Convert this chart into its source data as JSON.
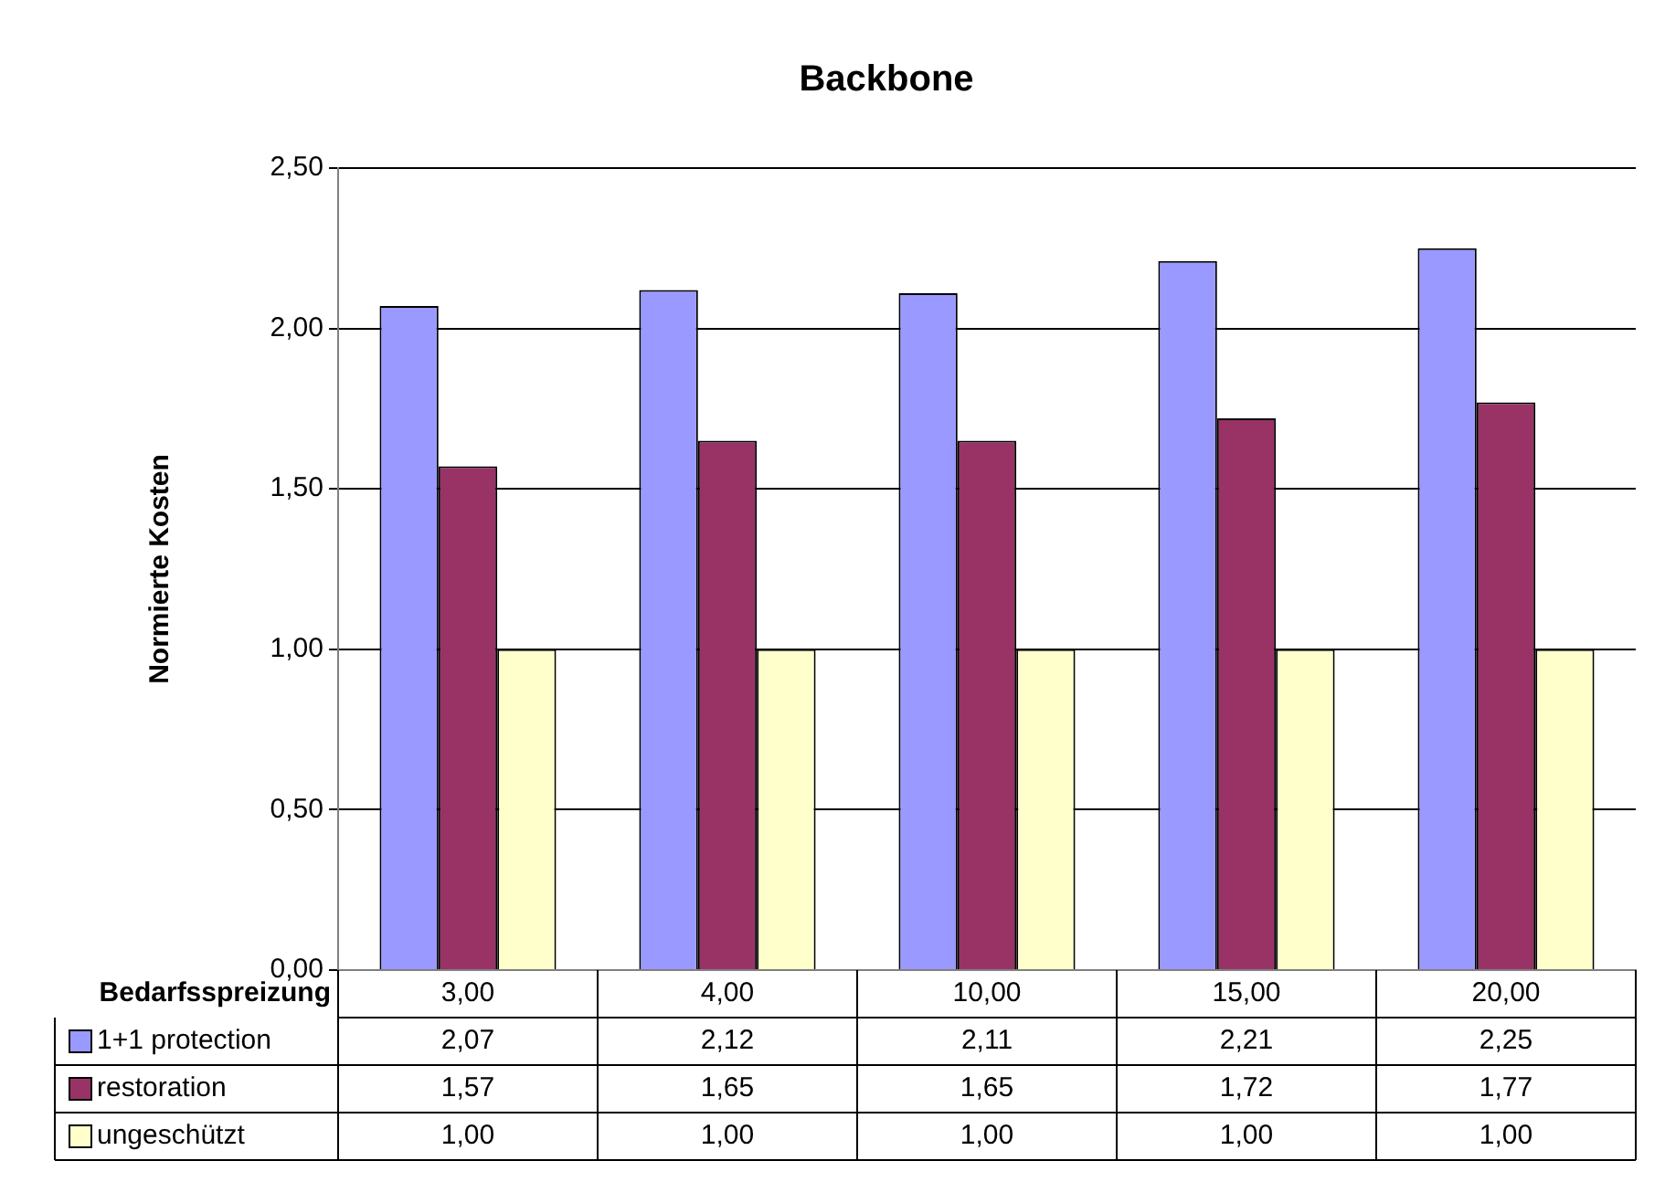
{
  "chart_data": {
    "type": "bar",
    "title": "Backbone",
    "xlabel": "Bedarfsspreizung",
    "ylabel": "Normierte Kosten",
    "categories": [
      "3,00",
      "4,00",
      "10,00",
      "15,00",
      "20,00"
    ],
    "series": [
      {
        "name": "1+1 protection",
        "color": "#9999ff",
        "values": [
          2.07,
          2.12,
          2.11,
          2.21,
          2.25
        ],
        "value_labels": [
          "2,07",
          "2,12",
          "2,11",
          "2,21",
          "2,25"
        ]
      },
      {
        "name": "restoration",
        "color": "#993366",
        "values": [
          1.57,
          1.65,
          1.65,
          1.72,
          1.77
        ],
        "value_labels": [
          "1,57",
          "1,65",
          "1,65",
          "1,72",
          "1,77"
        ]
      },
      {
        "name": "ungeschützt",
        "color": "#ffffcc",
        "values": [
          1.0,
          1.0,
          1.0,
          1.0,
          1.0
        ],
        "value_labels": [
          "1,00",
          "1,00",
          "1,00",
          "1,00",
          "1,00"
        ]
      }
    ],
    "ylim": [
      0,
      2.5
    ],
    "yticks": [
      {
        "value": 0,
        "label": "0,00"
      },
      {
        "value": 0.5,
        "label": "0,50"
      },
      {
        "value": 1,
        "label": "1,00"
      },
      {
        "value": 1.5,
        "label": "1,50"
      },
      {
        "value": 2,
        "label": "2,00"
      },
      {
        "value": 2.5,
        "label": "2,50"
      }
    ],
    "grid": "y",
    "legend": "bottom"
  }
}
